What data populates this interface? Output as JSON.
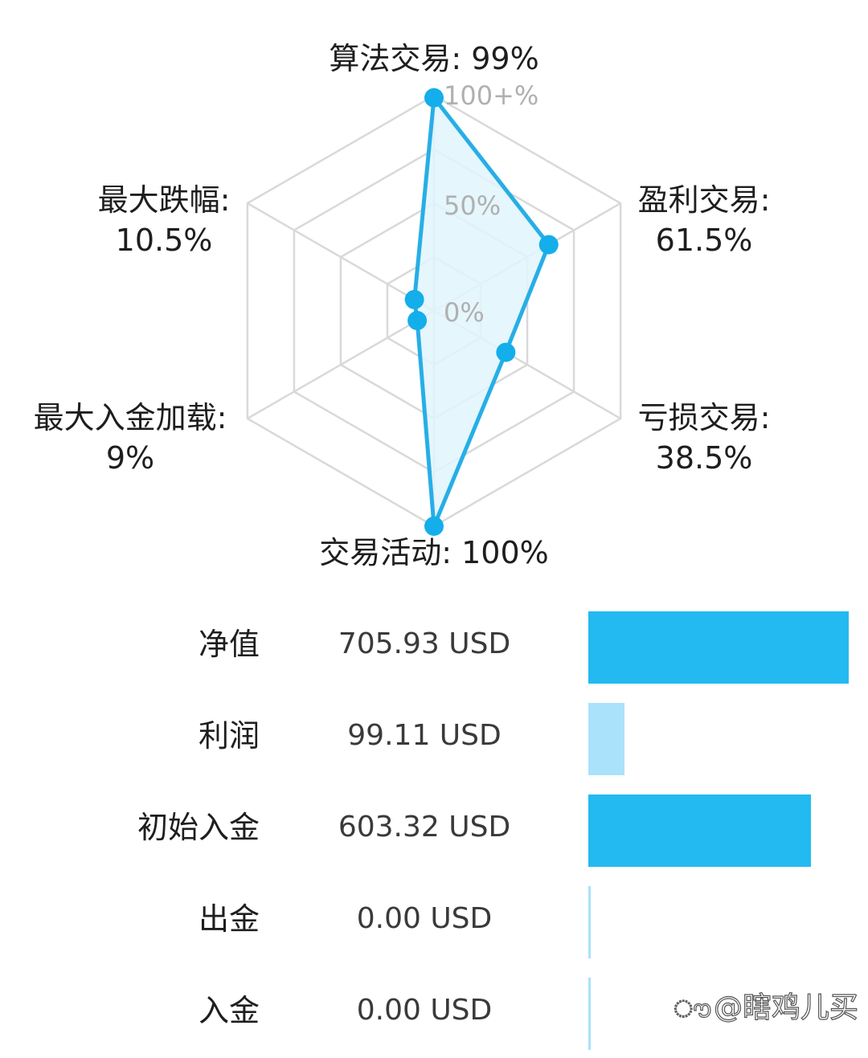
{
  "chart_data": [
    {
      "type": "radar",
      "axes": [
        {
          "name": "算法交易",
          "label": "算法交易: 99%",
          "value": 99
        },
        {
          "name": "盈利交易",
          "label": "盈利交易:",
          "value_label": "61.5%",
          "value": 61.5
        },
        {
          "name": "亏损交易",
          "label": "亏损交易:",
          "value_label": "38.5%",
          "value": 38.5
        },
        {
          "name": "交易活动",
          "label": "交易活动: 100%",
          "value": 100
        },
        {
          "name": "最大入金加载",
          "label": "最大入金加载:",
          "value_label": "9%",
          "value": 9
        },
        {
          "name": "最大跌幅",
          "label": "最大跌幅:",
          "value_label": "10.5%",
          "value": 10.5
        }
      ],
      "ring_labels": [
        "0%",
        "50%",
        "100+%"
      ],
      "range": [
        0,
        100
      ],
      "fill_color": "#e1f5fd",
      "line_color": "#27aee6",
      "point_color": "#14aeeb",
      "grid_color": "#d9d9d9"
    },
    {
      "type": "bar",
      "orientation": "horizontal",
      "rows": [
        {
          "label": "净值",
          "value_text": "705.93 USD",
          "value": 705.93,
          "color": "#22baf0"
        },
        {
          "label": "利润",
          "value_text": "99.11 USD",
          "value": 99.11,
          "color": "#a9e2fa"
        },
        {
          "label": "初始入金",
          "value_text": "603.32 USD",
          "value": 603.32,
          "color": "#22baf0"
        },
        {
          "label": "出金",
          "value_text": "0.00 USD",
          "value": 0,
          "color": "#a9e2fa"
        },
        {
          "label": "入金",
          "value_text": "0.00 USD",
          "value": 0,
          "color": "#a9e2fa"
        }
      ],
      "xlim": [
        0,
        705.93
      ]
    }
  ],
  "watermark": {
    "icon": "weibo-icon",
    "text": "@瞎鸡儿买"
  }
}
